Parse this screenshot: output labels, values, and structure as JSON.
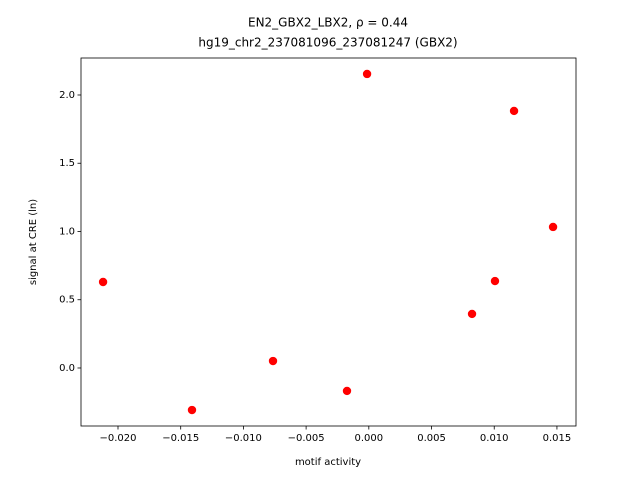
{
  "chart_data": {
    "type": "scatter",
    "title": "EN2_GBX2_LBX2, ρ = 0.44",
    "subtitle": "hg19_chr2_237081096_237081247 (GBX2)",
    "x_label": "motif activity",
    "y_label": "signal at CRE (ln)",
    "color": "#ff0000",
    "x": [
      -0.02119,
      -0.0141,
      -0.00764,
      -0.00174,
      -0.00014,
      0.00823,
      0.01006,
      0.01158,
      0.01469
    ],
    "values": [
      0.63,
      -0.308,
      0.051,
      -0.168,
      2.154,
      0.396,
      0.637,
      1.883,
      1.033
    ],
    "xlim": [
      -0.02295,
      0.01652
    ],
    "ylim": [
      -0.425,
      2.271
    ],
    "xticks": [
      {
        "value": -0.02,
        "label": "−0.020"
      },
      {
        "value": -0.015,
        "label": "−0.015"
      },
      {
        "value": -0.01,
        "label": "−0.010"
      },
      {
        "value": -0.005,
        "label": "−0.005"
      },
      {
        "value": 0,
        "label": "0.000"
      },
      {
        "value": 0.005,
        "label": "0.005"
      },
      {
        "value": 0.01,
        "label": "0.010"
      },
      {
        "value": 0.015,
        "label": "0.015"
      }
    ],
    "yticks": [
      {
        "value": 0,
        "label": "0.0"
      },
      0.5,
      {
        "value": 1,
        "label": "1.0"
      },
      1.5,
      {
        "value": 2,
        "label": "2.0"
      }
    ]
  }
}
